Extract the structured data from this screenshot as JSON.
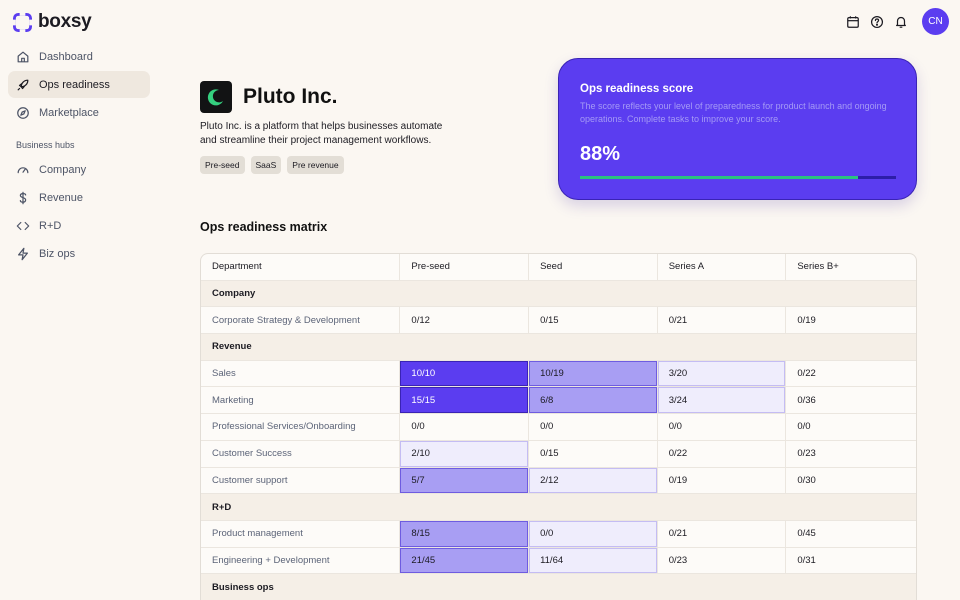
{
  "app": {
    "brand": "boxsy"
  },
  "sidebar": {
    "items": [
      {
        "label": "Dashboard",
        "icon": "home-icon"
      },
      {
        "label": "Ops readiness",
        "icon": "rocket-icon",
        "active": true
      },
      {
        "label": "Marketplace",
        "icon": "compass-icon"
      }
    ],
    "section_label": "Business hubs",
    "hubs": [
      {
        "label": "Company",
        "icon": "gauge-icon"
      },
      {
        "label": "Revenue",
        "icon": "dollar-icon"
      },
      {
        "label": "R+D",
        "icon": "code-icon"
      },
      {
        "label": "Biz ops",
        "icon": "bolt-icon"
      }
    ]
  },
  "topbar": {
    "icons": [
      "calendar-icon",
      "help-icon",
      "bell-icon"
    ],
    "avatar_initials": "CN"
  },
  "company": {
    "name": "Pluto Inc.",
    "description": "Pluto Inc. is a  platform that helps businesses automate and streamline their project management workflows.",
    "tags": [
      "Pre-seed",
      "SaaS",
      "Pre revenue"
    ]
  },
  "score": {
    "title": "Ops readiness score",
    "description": "The score reflects your level of preparedness for product launch and ongoing operations. Complete tasks to improve your score.",
    "value_text": "88%",
    "progress": 0.88,
    "accent": "#5b3df0",
    "progress_color": "#2cc17f"
  },
  "matrix": {
    "title": "Ops readiness matrix",
    "columns": [
      "Department",
      "Pre-seed",
      "Seed",
      "Series A",
      "Series B+"
    ],
    "groups": [
      {
        "name": "Company",
        "rows": [
          {
            "label": "Corporate Strategy & Development",
            "values": [
              "0/12",
              "0/15",
              "0/21",
              "0/19"
            ],
            "levels": [
              "",
              "",
              "",
              ""
            ]
          }
        ]
      },
      {
        "name": "Revenue",
        "rows": [
          {
            "label": "Sales",
            "values": [
              "10/10",
              "10/19",
              "3/20",
              "0/22"
            ],
            "levels": [
              "dark",
              "mid",
              "light",
              ""
            ]
          },
          {
            "label": "Marketing",
            "values": [
              "15/15",
              "6/8",
              "3/24",
              "0/36"
            ],
            "levels": [
              "dark",
              "mid",
              "light",
              ""
            ]
          },
          {
            "label": "Professional Services/Onboarding",
            "values": [
              "0/0",
              "0/0",
              "0/0",
              "0/0"
            ],
            "levels": [
              "",
              "",
              "",
              ""
            ]
          },
          {
            "label": "Customer Success",
            "values": [
              "2/10",
              "0/15",
              "0/22",
              "0/23"
            ],
            "levels": [
              "light",
              "",
              "",
              ""
            ]
          },
          {
            "label": "Customer support",
            "values": [
              "5/7",
              "2/12",
              "0/19",
              "0/30"
            ],
            "levels": [
              "mid",
              "light",
              "",
              ""
            ]
          }
        ]
      },
      {
        "name": "R+D",
        "rows": [
          {
            "label": "Product management",
            "values": [
              "8/15",
              "0/0",
              "0/21",
              "0/45"
            ],
            "levels": [
              "mid",
              "light",
              "",
              ""
            ]
          },
          {
            "label": "Engineering + Development",
            "values": [
              "21/45",
              "11/64",
              "0/23",
              "0/31"
            ],
            "levels": [
              "mid",
              "light",
              "",
              ""
            ]
          }
        ]
      },
      {
        "name": "Business ops",
        "rows": []
      }
    ]
  }
}
